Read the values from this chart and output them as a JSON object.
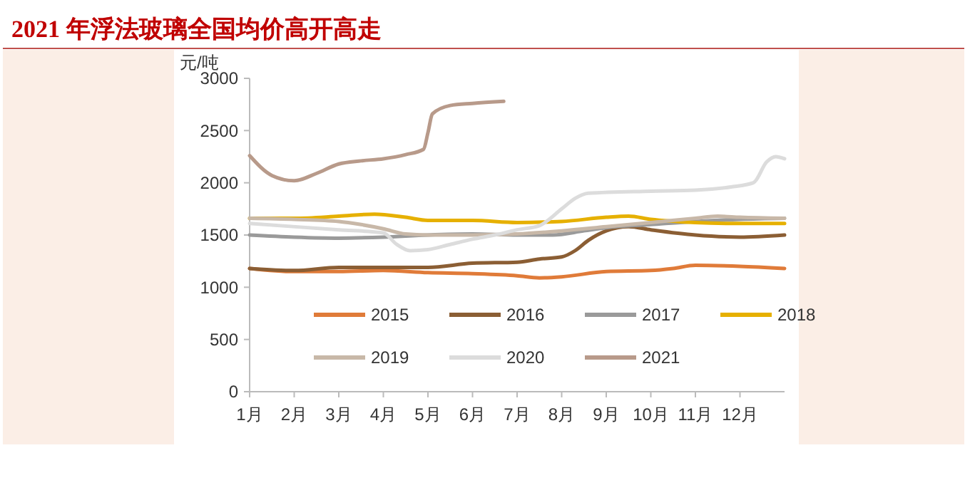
{
  "chart_data": {
    "type": "line",
    "title": "2021 年浮法玻璃全国均价高开高走",
    "ylabel": "元/吨",
    "xlim": [
      1,
      13
    ],
    "xticks": [
      {
        "value": 1,
        "label": "1月"
      },
      {
        "value": 2,
        "label": "2月"
      },
      {
        "value": 3,
        "label": "3月"
      },
      {
        "value": 4,
        "label": "4月"
      },
      {
        "value": 5,
        "label": "5月"
      },
      {
        "value": 6,
        "label": "6月"
      },
      {
        "value": 7,
        "label": "7月"
      },
      {
        "value": 8,
        "label": "8月"
      },
      {
        "value": 9,
        "label": "9月"
      },
      {
        "value": 10,
        "label": "10月"
      },
      {
        "value": 11,
        "label": "11月"
      },
      {
        "value": 12,
        "label": "12月"
      }
    ],
    "ylim": [
      0,
      3000
    ],
    "yticks": [
      0,
      500,
      1000,
      1500,
      2000,
      2500,
      3000
    ],
    "grid": false,
    "legend": "bottom",
    "line_style": "solid",
    "marker": "none",
    "series": [
      {
        "name": "2015",
        "color": "#e07b39",
        "x": [
          1,
          2,
          3,
          4,
          5,
          6,
          7,
          7.5,
          8,
          9,
          10,
          10.5,
          11,
          12,
          13
        ],
        "values": [
          1180,
          1150,
          1150,
          1160,
          1140,
          1130,
          1110,
          1090,
          1100,
          1150,
          1160,
          1180,
          1210,
          1200,
          1180
        ]
      },
      {
        "name": "2016",
        "color": "#8b5e34",
        "x": [
          1,
          2,
          3,
          4,
          5,
          6,
          7,
          7.5,
          8,
          8.3,
          8.6,
          9,
          9.5,
          10,
          11,
          12,
          13
        ],
        "values": [
          1180,
          1160,
          1190,
          1190,
          1190,
          1230,
          1240,
          1270,
          1290,
          1350,
          1450,
          1540,
          1580,
          1550,
          1500,
          1480,
          1500
        ]
      },
      {
        "name": "2017",
        "color": "#9a9a9a",
        "x": [
          1,
          2,
          3,
          4,
          5,
          6,
          7,
          7.8,
          8.5,
          9,
          10,
          11,
          12,
          13
        ],
        "values": [
          1500,
          1480,
          1470,
          1480,
          1500,
          1510,
          1500,
          1500,
          1540,
          1570,
          1600,
          1630,
          1650,
          1660
        ]
      },
      {
        "name": "2018",
        "color": "#e6b000",
        "x": [
          1,
          2,
          3,
          3.8,
          4.5,
          5,
          6,
          7,
          8,
          9,
          9.5,
          10,
          11,
          12,
          13
        ],
        "values": [
          1660,
          1660,
          1680,
          1700,
          1670,
          1640,
          1640,
          1620,
          1630,
          1670,
          1680,
          1650,
          1620,
          1610,
          1610
        ]
      },
      {
        "name": "2019",
        "color": "#c8b8a8",
        "x": [
          1,
          2,
          3,
          3.5,
          4,
          4.5,
          5,
          6,
          7,
          8,
          9,
          10,
          11,
          11.5,
          12,
          13
        ],
        "values": [
          1660,
          1650,
          1630,
          1600,
          1560,
          1510,
          1500,
          1500,
          1510,
          1540,
          1580,
          1620,
          1660,
          1680,
          1670,
          1660
        ]
      },
      {
        "name": "2020",
        "color": "#dcdcdc",
        "x": [
          1,
          3,
          4,
          4.3,
          4.6,
          5,
          5.5,
          6,
          6.5,
          7,
          7.5,
          8,
          8.3,
          8.6,
          10,
          11,
          11.8,
          12.3,
          12.6,
          12.8,
          13
        ],
        "values": [
          1610,
          1550,
          1520,
          1410,
          1350,
          1360,
          1410,
          1460,
          1500,
          1550,
          1590,
          1750,
          1850,
          1900,
          1920,
          1930,
          1960,
          2000,
          2200,
          2250,
          2230
        ]
      },
      {
        "name": "2021",
        "color": "#b89a8a",
        "x": [
          1,
          1.5,
          2,
          2.5,
          3,
          3.5,
          4,
          4.5,
          4.9,
          5,
          5.1,
          5.5,
          6,
          6.7
        ],
        "values": [
          2260,
          2070,
          2020,
          2090,
          2180,
          2210,
          2230,
          2270,
          2320,
          2480,
          2660,
          2740,
          2760,
          2780
        ]
      }
    ]
  }
}
